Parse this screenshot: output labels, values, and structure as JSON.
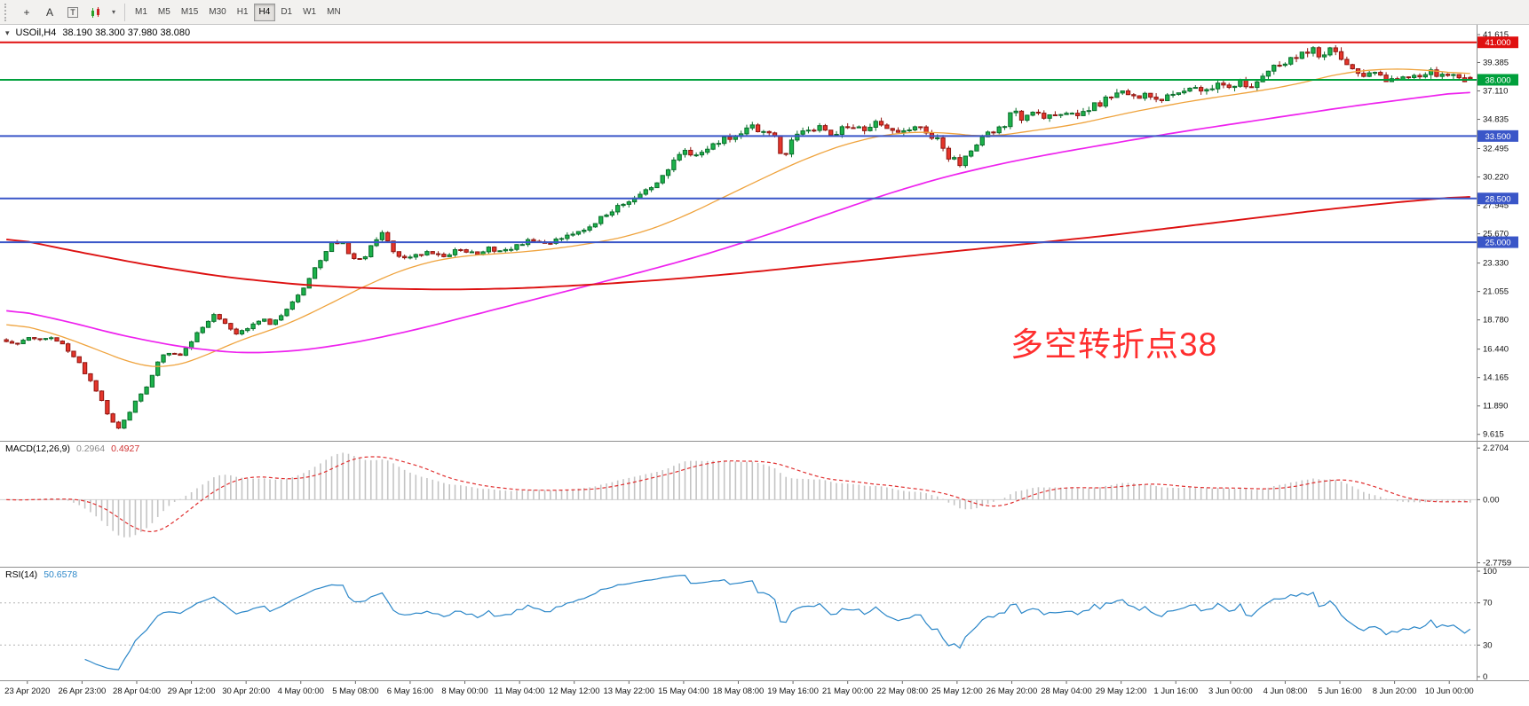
{
  "toolbar": {
    "tools": [
      {
        "name": "crosshair",
        "glyph": "+"
      },
      {
        "name": "text-label",
        "glyph": "A"
      },
      {
        "name": "text-frame",
        "glyph": "T"
      },
      {
        "name": "indicators-dropdown",
        "glyph": "▾"
      }
    ],
    "timeframes": [
      {
        "label": "M1"
      },
      {
        "label": "M5"
      },
      {
        "label": "M15"
      },
      {
        "label": "M30"
      },
      {
        "label": "H1"
      },
      {
        "label": "H4",
        "active": true
      },
      {
        "label": "D1"
      },
      {
        "label": "W1"
      },
      {
        "label": "MN"
      }
    ]
  },
  "chart_header": {
    "symbol_text": "USOil,H4",
    "ohlc_text": "38.190 38.300 37.980 38.080"
  },
  "chart_data": {
    "type": "candlestick",
    "symbol": "USOil",
    "timeframe": "H4",
    "last_ohlc": {
      "open": 38.19,
      "high": 38.3,
      "low": 37.98,
      "close": 38.08
    },
    "num_candles": 262,
    "price_range": [
      9.1,
      42.4
    ],
    "price_axis_ticks": [
      "41.615",
      "39.385",
      "37.110",
      "34.835",
      "32.495",
      "30.220",
      "27.945",
      "25.670",
      "23.330",
      "21.055",
      "18.780",
      "16.440",
      "14.165",
      "11.890",
      "9.615"
    ],
    "annotation": {
      "text": "多空转折点38",
      "color": "#ff2e2e"
    },
    "bull_color": "#1cb24b",
    "bull_border": "#0a6e2b",
    "bear_color": "#e5352b",
    "bear_border": "#8f1510",
    "ma_fast_color": "#efa33d",
    "ma_mid_color": "#ee22ee",
    "ma_slow_color": "#dd1111",
    "levels": [
      {
        "price": 41.0,
        "label": "41.000",
        "color": "#e01010"
      },
      {
        "price": 38.0,
        "label": "38.000",
        "color": "#00a03c"
      },
      {
        "price": 33.5,
        "label": "33.500",
        "color": "#3a56c8"
      },
      {
        "price": 28.5,
        "label": "28.500",
        "color": "#3a56c8"
      },
      {
        "price": 25.0,
        "label": "25.000",
        "color": "#3a56c8"
      }
    ],
    "close_anchors": [
      [
        0.0,
        17.1
      ],
      [
        0.008,
        16.8
      ],
      [
        0.016,
        17.4
      ],
      [
        0.024,
        17.1
      ],
      [
        0.032,
        17.3
      ],
      [
        0.04,
        16.6
      ],
      [
        0.048,
        15.6
      ],
      [
        0.056,
        14.1
      ],
      [
        0.063,
        12.8
      ],
      [
        0.07,
        11.0
      ],
      [
        0.076,
        10.1
      ],
      [
        0.082,
        11.0
      ],
      [
        0.09,
        12.6
      ],
      [
        0.098,
        13.8
      ],
      [
        0.105,
        15.9
      ],
      [
        0.112,
        16.2
      ],
      [
        0.12,
        16.0
      ],
      [
        0.128,
        17.4
      ],
      [
        0.136,
        18.4
      ],
      [
        0.143,
        19.3
      ],
      [
        0.15,
        18.3
      ],
      [
        0.158,
        17.7
      ],
      [
        0.166,
        18.2
      ],
      [
        0.174,
        18.9
      ],
      [
        0.182,
        18.4
      ],
      [
        0.19,
        19.5
      ],
      [
        0.198,
        20.7
      ],
      [
        0.206,
        21.9
      ],
      [
        0.214,
        23.5
      ],
      [
        0.221,
        24.8
      ],
      [
        0.228,
        25.1
      ],
      [
        0.235,
        23.9
      ],
      [
        0.242,
        23.5
      ],
      [
        0.25,
        24.7
      ],
      [
        0.257,
        25.9
      ],
      [
        0.263,
        24.5
      ],
      [
        0.27,
        23.7
      ],
      [
        0.28,
        23.9
      ],
      [
        0.29,
        24.3
      ],
      [
        0.3,
        23.9
      ],
      [
        0.31,
        24.4
      ],
      [
        0.32,
        24.1
      ],
      [
        0.33,
        24.5
      ],
      [
        0.34,
        24.2
      ],
      [
        0.35,
        24.8
      ],
      [
        0.36,
        25.2
      ],
      [
        0.37,
        24.9
      ],
      [
        0.38,
        25.5
      ],
      [
        0.39,
        25.8
      ],
      [
        0.4,
        26.5
      ],
      [
        0.41,
        27.3
      ],
      [
        0.42,
        28.1
      ],
      [
        0.43,
        28.7
      ],
      [
        0.44,
        29.5
      ],
      [
        0.45,
        30.5
      ],
      [
        0.458,
        31.7
      ],
      [
        0.465,
        32.3
      ],
      [
        0.472,
        31.8
      ],
      [
        0.48,
        32.6
      ],
      [
        0.49,
        33.2
      ],
      [
        0.5,
        33.7
      ],
      [
        0.508,
        34.4
      ],
      [
        0.516,
        33.6
      ],
      [
        0.524,
        33.9
      ],
      [
        0.531,
        31.5
      ],
      [
        0.537,
        33.5
      ],
      [
        0.545,
        33.9
      ],
      [
        0.555,
        34.1
      ],
      [
        0.565,
        33.7
      ],
      [
        0.575,
        34.3
      ],
      [
        0.585,
        34.0
      ],
      [
        0.595,
        34.6
      ],
      [
        0.605,
        34.1
      ],
      [
        0.615,
        33.9
      ],
      [
        0.625,
        34.2
      ],
      [
        0.635,
        33.3
      ],
      [
        0.644,
        31.8
      ],
      [
        0.651,
        31.3
      ],
      [
        0.659,
        32.5
      ],
      [
        0.667,
        33.5
      ],
      [
        0.675,
        34.0
      ],
      [
        0.682,
        34.4
      ],
      [
        0.688,
        35.9
      ],
      [
        0.694,
        34.9
      ],
      [
        0.703,
        35.3
      ],
      [
        0.712,
        35.0
      ],
      [
        0.721,
        35.4
      ],
      [
        0.73,
        35.1
      ],
      [
        0.739,
        35.7
      ],
      [
        0.748,
        36.2
      ],
      [
        0.757,
        36.8
      ],
      [
        0.764,
        37.2
      ],
      [
        0.772,
        36.5
      ],
      [
        0.779,
        36.9
      ],
      [
        0.786,
        36.2
      ],
      [
        0.794,
        36.8
      ],
      [
        0.802,
        37.0
      ],
      [
        0.81,
        37.4
      ],
      [
        0.818,
        37.1
      ],
      [
        0.826,
        37.6
      ],
      [
        0.834,
        37.3
      ],
      [
        0.842,
        37.8
      ],
      [
        0.85,
        37.6
      ],
      [
        0.858,
        38.4
      ],
      [
        0.866,
        38.9
      ],
      [
        0.874,
        39.4
      ],
      [
        0.882,
        39.9
      ],
      [
        0.89,
        40.5
      ],
      [
        0.897,
        40.1
      ],
      [
        0.904,
        40.4
      ],
      [
        0.911,
        39.8
      ],
      [
        0.918,
        39.0
      ],
      [
        0.926,
        38.4
      ],
      [
        0.934,
        38.7
      ],
      [
        0.941,
        38.2
      ],
      [
        0.948,
        37.7
      ],
      [
        0.955,
        38.1
      ],
      [
        0.963,
        38.4
      ],
      [
        0.971,
        38.6
      ],
      [
        0.979,
        38.3
      ],
      [
        0.988,
        38.2
      ],
      [
        1.0,
        38.08
      ]
    ],
    "ma_fast_anchors": [
      [
        0,
        18.6
      ],
      [
        0.03,
        17.8
      ],
      [
        0.06,
        16.5
      ],
      [
        0.09,
        15.1
      ],
      [
        0.11,
        14.9
      ],
      [
        0.13,
        15.6
      ],
      [
        0.16,
        17.2
      ],
      [
        0.19,
        18.3
      ],
      [
        0.22,
        20.0
      ],
      [
        0.25,
        21.8
      ],
      [
        0.28,
        23.2
      ],
      [
        0.31,
        23.9
      ],
      [
        0.34,
        24.1
      ],
      [
        0.37,
        24.4
      ],
      [
        0.4,
        24.9
      ],
      [
        0.43,
        25.6
      ],
      [
        0.46,
        26.9
      ],
      [
        0.49,
        28.6
      ],
      [
        0.52,
        30.3
      ],
      [
        0.55,
        31.9
      ],
      [
        0.58,
        33.1
      ],
      [
        0.61,
        33.8
      ],
      [
        0.64,
        33.8
      ],
      [
        0.67,
        33.4
      ],
      [
        0.7,
        33.9
      ],
      [
        0.73,
        34.4
      ],
      [
        0.76,
        35.2
      ],
      [
        0.79,
        35.9
      ],
      [
        0.82,
        36.5
      ],
      [
        0.85,
        37.0
      ],
      [
        0.88,
        37.6
      ],
      [
        0.91,
        38.5
      ],
      [
        0.94,
        38.9
      ],
      [
        0.97,
        38.8
      ],
      [
        1.0,
        38.4
      ]
    ],
    "ma_mid_anchors": [
      [
        0,
        19.7
      ],
      [
        0.04,
        18.7
      ],
      [
        0.08,
        17.5
      ],
      [
        0.12,
        16.6
      ],
      [
        0.16,
        16.1
      ],
      [
        0.2,
        16.3
      ],
      [
        0.24,
        17.0
      ],
      [
        0.28,
        18.0
      ],
      [
        0.32,
        19.2
      ],
      [
        0.36,
        20.4
      ],
      [
        0.4,
        21.6
      ],
      [
        0.44,
        22.8
      ],
      [
        0.48,
        24.1
      ],
      [
        0.52,
        25.6
      ],
      [
        0.56,
        27.2
      ],
      [
        0.6,
        28.8
      ],
      [
        0.64,
        30.2
      ],
      [
        0.68,
        31.3
      ],
      [
        0.72,
        32.2
      ],
      [
        0.76,
        33.0
      ],
      [
        0.8,
        33.8
      ],
      [
        0.84,
        34.5
      ],
      [
        0.88,
        35.2
      ],
      [
        0.92,
        35.9
      ],
      [
        0.96,
        36.5
      ],
      [
        1.0,
        37.1
      ]
    ],
    "ma_slow_anchors": [
      [
        0,
        25.4
      ],
      [
        0.05,
        24.2
      ],
      [
        0.1,
        23.1
      ],
      [
        0.15,
        22.2
      ],
      [
        0.2,
        21.6
      ],
      [
        0.25,
        21.3
      ],
      [
        0.3,
        21.2
      ],
      [
        0.35,
        21.3
      ],
      [
        0.4,
        21.6
      ],
      [
        0.45,
        22.0
      ],
      [
        0.5,
        22.5
      ],
      [
        0.55,
        23.1
      ],
      [
        0.6,
        23.7
      ],
      [
        0.65,
        24.3
      ],
      [
        0.7,
        24.9
      ],
      [
        0.75,
        25.5
      ],
      [
        0.8,
        26.2
      ],
      [
        0.85,
        26.9
      ],
      [
        0.9,
        27.6
      ],
      [
        0.95,
        28.2
      ],
      [
        1.0,
        28.7
      ]
    ],
    "macd": {
      "name_label": "MACD(12,26,9)",
      "main_value": "0.2964",
      "signal_value": "0.4927",
      "axis_ticks": [
        "2.2704",
        "0.00",
        "-2.7759"
      ],
      "range": [
        -2.95,
        2.55
      ],
      "histogram_color": "#c4c4c4",
      "signal_color": "#e03030"
    },
    "rsi": {
      "name_label": "RSI(14)",
      "value": "50.6578",
      "axis_ticks": [
        "100",
        "70",
        "30",
        "0"
      ],
      "levels": [
        70,
        30
      ],
      "line_color": "#2a86c8"
    },
    "time_axis_labels": [
      "23 Apr 2020",
      "26 Apr 23:00",
      "28 Apr 04:00",
      "29 Apr 12:00",
      "30 Apr 20:00",
      "4 May 00:00",
      "5 May 08:00",
      "6 May 16:00",
      "8 May 00:00",
      "11 May 04:00",
      "12 May 12:00",
      "13 May 22:00",
      "15 May 04:00",
      "18 May 08:00",
      "19 May 16:00",
      "21 May 00:00",
      "22 May 08:00",
      "25 May 12:00",
      "26 May 20:00",
      "28 May 04:00",
      "29 May 12:00",
      "1 Jun 16:00",
      "3 Jun 00:00",
      "4 Jun 08:00",
      "5 Jun 16:00",
      "8 Jun 20:00",
      "10 Jun 00:00"
    ]
  }
}
